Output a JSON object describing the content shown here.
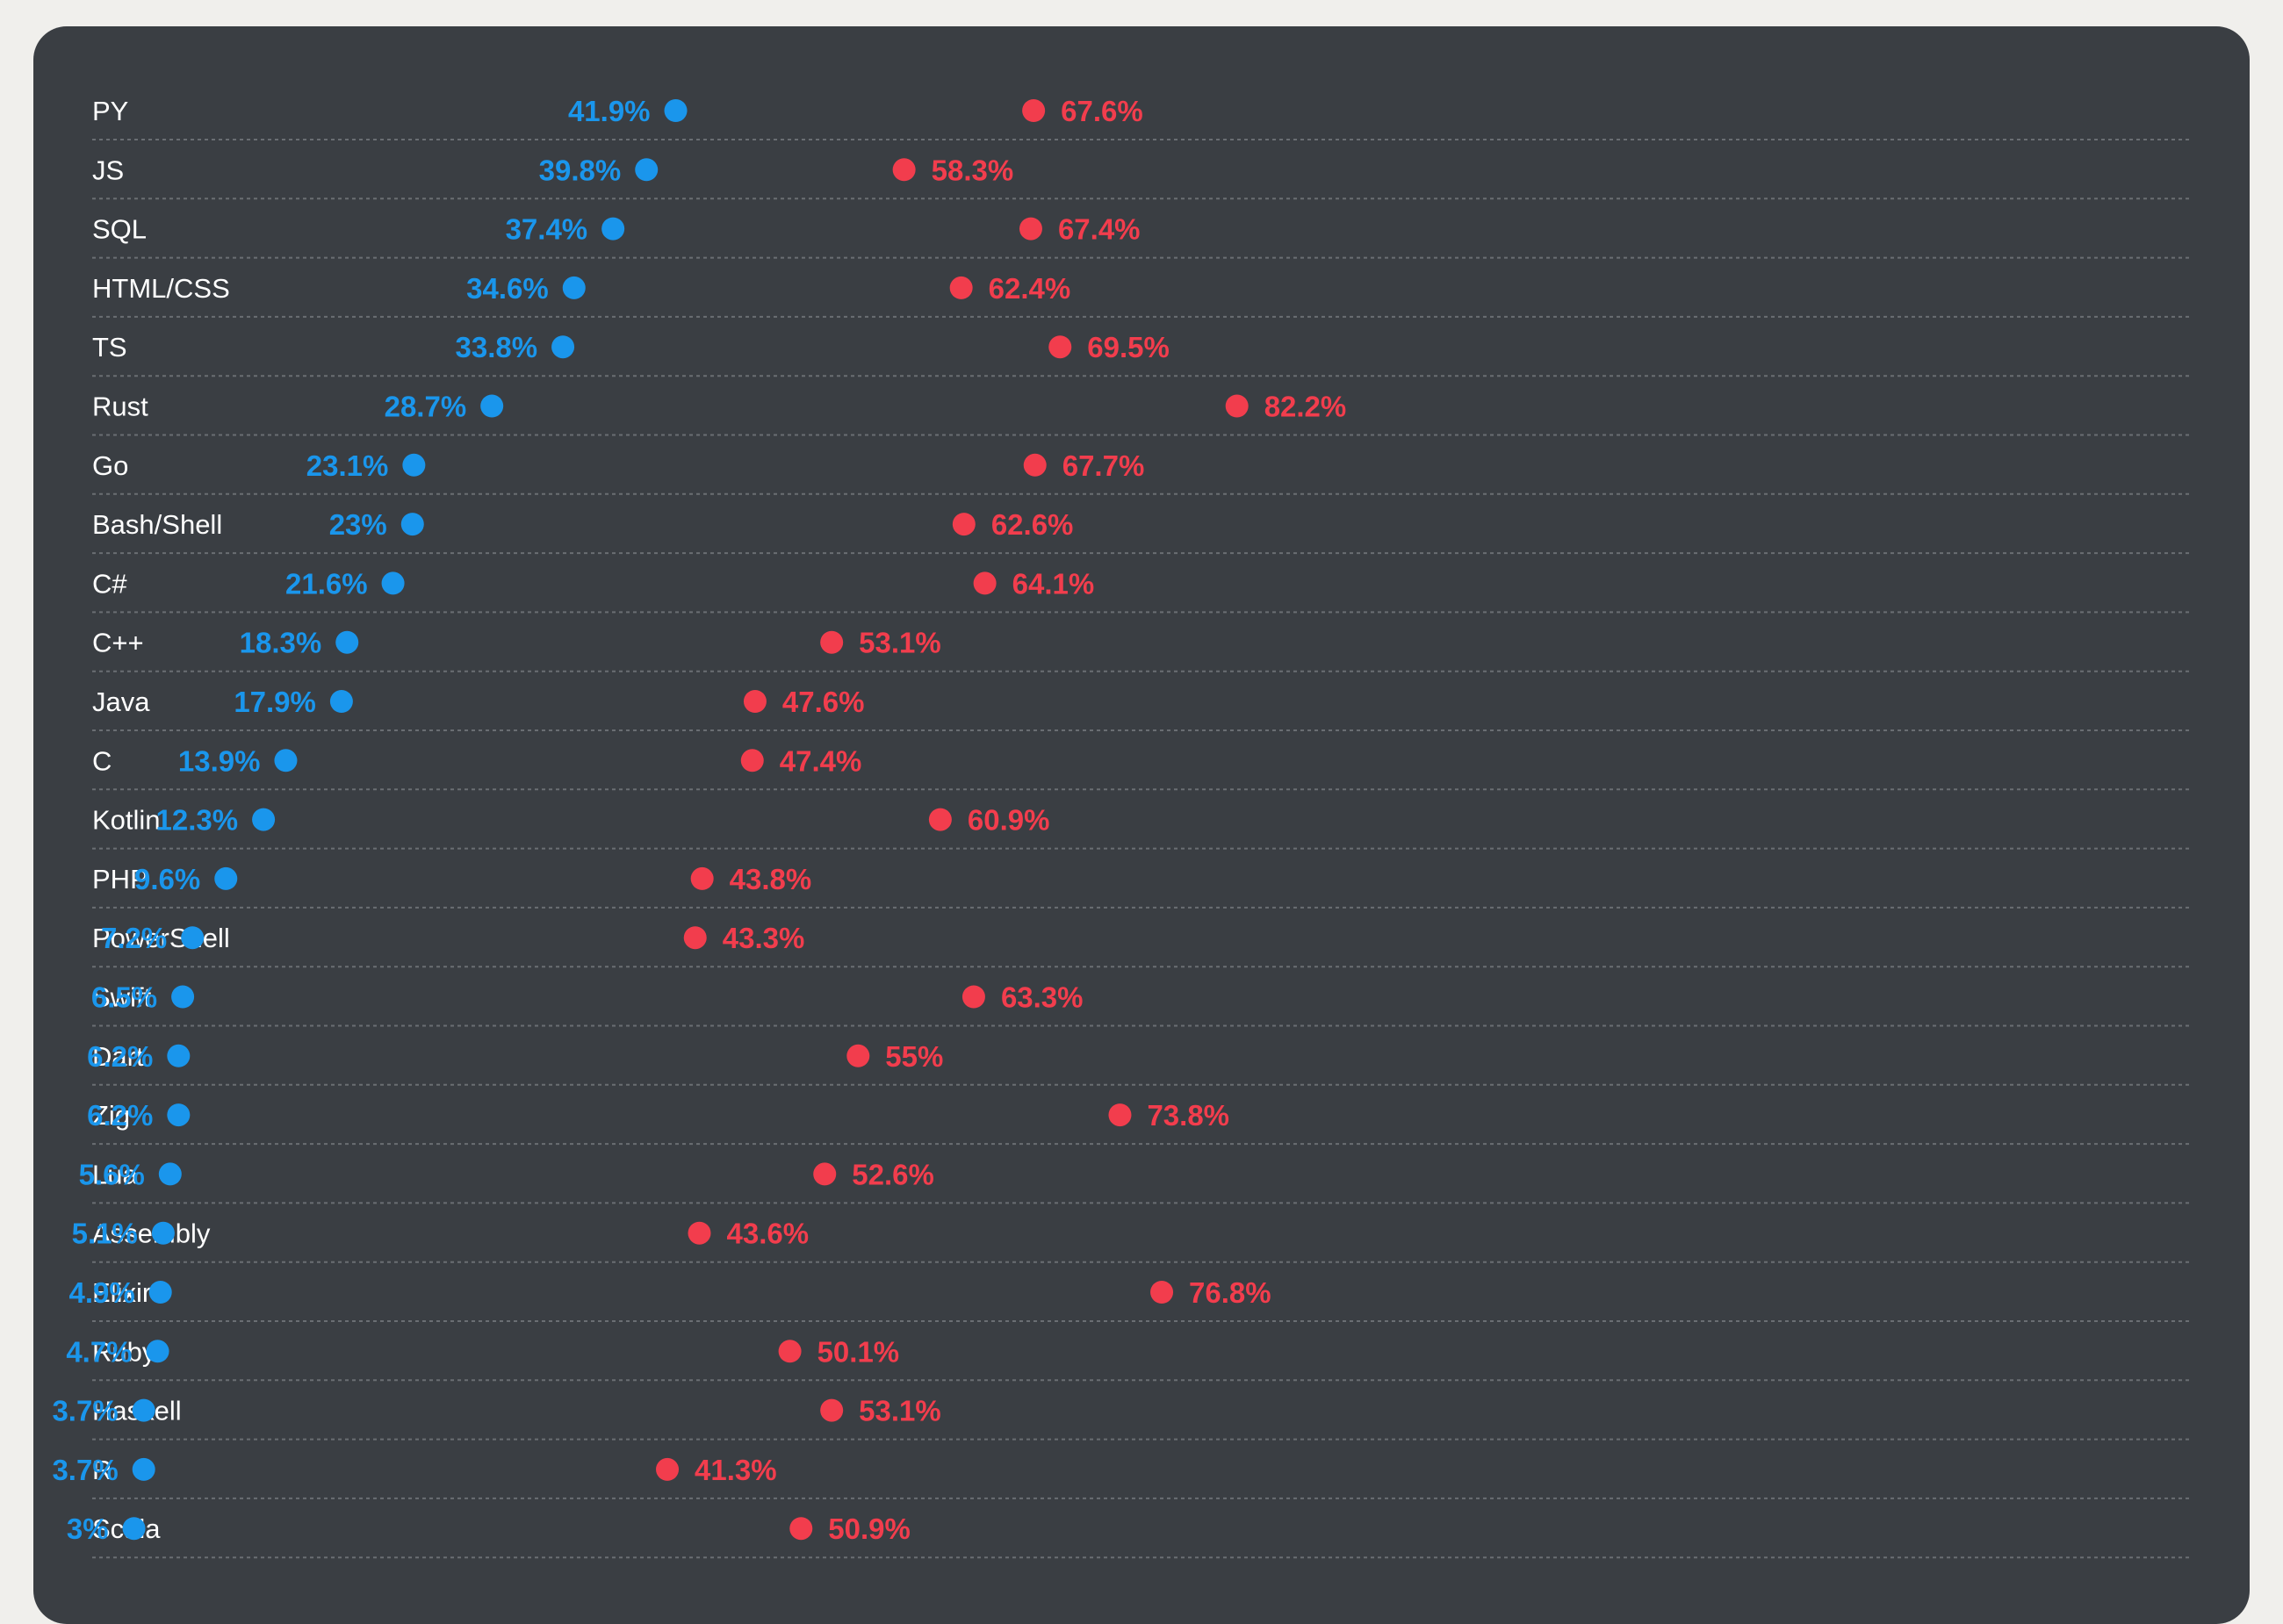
{
  "chart_data": {
    "type": "dumbbell",
    "x_range": [
      0,
      100
    ],
    "colors": {
      "card": "#3a3e43",
      "page": "#f0efec",
      "start": "#1a96ec",
      "end": "#f23d4d",
      "label": "#ffffff",
      "grid": "#6a6e73"
    },
    "rows": [
      {
        "label": "PY",
        "start": 41.9,
        "end": 67.6,
        "start_label": "41.9%",
        "end_label": "67.6%"
      },
      {
        "label": "JS",
        "start": 39.8,
        "end": 58.3,
        "start_label": "39.8%",
        "end_label": "58.3%"
      },
      {
        "label": "SQL",
        "start": 37.4,
        "end": 67.4,
        "start_label": "37.4%",
        "end_label": "67.4%"
      },
      {
        "label": "HTML/CSS",
        "start": 34.6,
        "end": 62.4,
        "start_label": "34.6%",
        "end_label": "62.4%"
      },
      {
        "label": "TS",
        "start": 33.8,
        "end": 69.5,
        "start_label": "33.8%",
        "end_label": "69.5%"
      },
      {
        "label": "Rust",
        "start": 28.7,
        "end": 82.2,
        "start_label": "28.7%",
        "end_label": "82.2%"
      },
      {
        "label": "Go",
        "start": 23.1,
        "end": 67.7,
        "start_label": "23.1%",
        "end_label": "67.7%"
      },
      {
        "label": "Bash/Shell",
        "start": 23,
        "end": 62.6,
        "start_label": "23%",
        "end_label": "62.6%"
      },
      {
        "label": "C#",
        "start": 21.6,
        "end": 64.1,
        "start_label": "21.6%",
        "end_label": "64.1%"
      },
      {
        "label": "C++",
        "start": 18.3,
        "end": 53.1,
        "start_label": "18.3%",
        "end_label": "53.1%"
      },
      {
        "label": "Java",
        "start": 17.9,
        "end": 47.6,
        "start_label": "17.9%",
        "end_label": "47.6%"
      },
      {
        "label": "C",
        "start": 13.9,
        "end": 47.4,
        "start_label": "13.9%",
        "end_label": "47.4%"
      },
      {
        "label": "Kotlin",
        "start": 12.3,
        "end": 60.9,
        "start_label": "12.3%",
        "end_label": "60.9%"
      },
      {
        "label": "PHP",
        "start": 9.6,
        "end": 43.8,
        "start_label": "9.6%",
        "end_label": "43.8%"
      },
      {
        "label": "PowerShell",
        "start": 7.2,
        "end": 43.3,
        "start_label": "7.2%",
        "end_label": "43.3%"
      },
      {
        "label": "Swift",
        "start": 6.5,
        "end": 63.3,
        "start_label": "6.5%",
        "end_label": "63.3%"
      },
      {
        "label": "Dart",
        "start": 6.2,
        "end": 55,
        "start_label": "6.2%",
        "end_label": "55%"
      },
      {
        "label": "Zig",
        "start": 6.2,
        "end": 73.8,
        "start_label": "6.2%",
        "end_label": "73.8%"
      },
      {
        "label": "Lua",
        "start": 5.6,
        "end": 52.6,
        "start_label": "5.6%",
        "end_label": "52.6%"
      },
      {
        "label": "Assembly",
        "start": 5.1,
        "end": 43.6,
        "start_label": "5.1%",
        "end_label": "43.6%"
      },
      {
        "label": "Elixir",
        "start": 4.9,
        "end": 76.8,
        "start_label": "4.9%",
        "end_label": "76.8%"
      },
      {
        "label": "Ruby",
        "start": 4.7,
        "end": 50.1,
        "start_label": "4.7%",
        "end_label": "50.1%"
      },
      {
        "label": "Haskell",
        "start": 3.7,
        "end": 53.1,
        "start_label": "3.7%",
        "end_label": "53.1%"
      },
      {
        "label": "R",
        "start": 3.7,
        "end": 41.3,
        "start_label": "3.7%",
        "end_label": "41.3%"
      },
      {
        "label": "Scala",
        "start": 3,
        "end": 50.9,
        "start_label": "3%",
        "end_label": "50.9%"
      }
    ]
  }
}
